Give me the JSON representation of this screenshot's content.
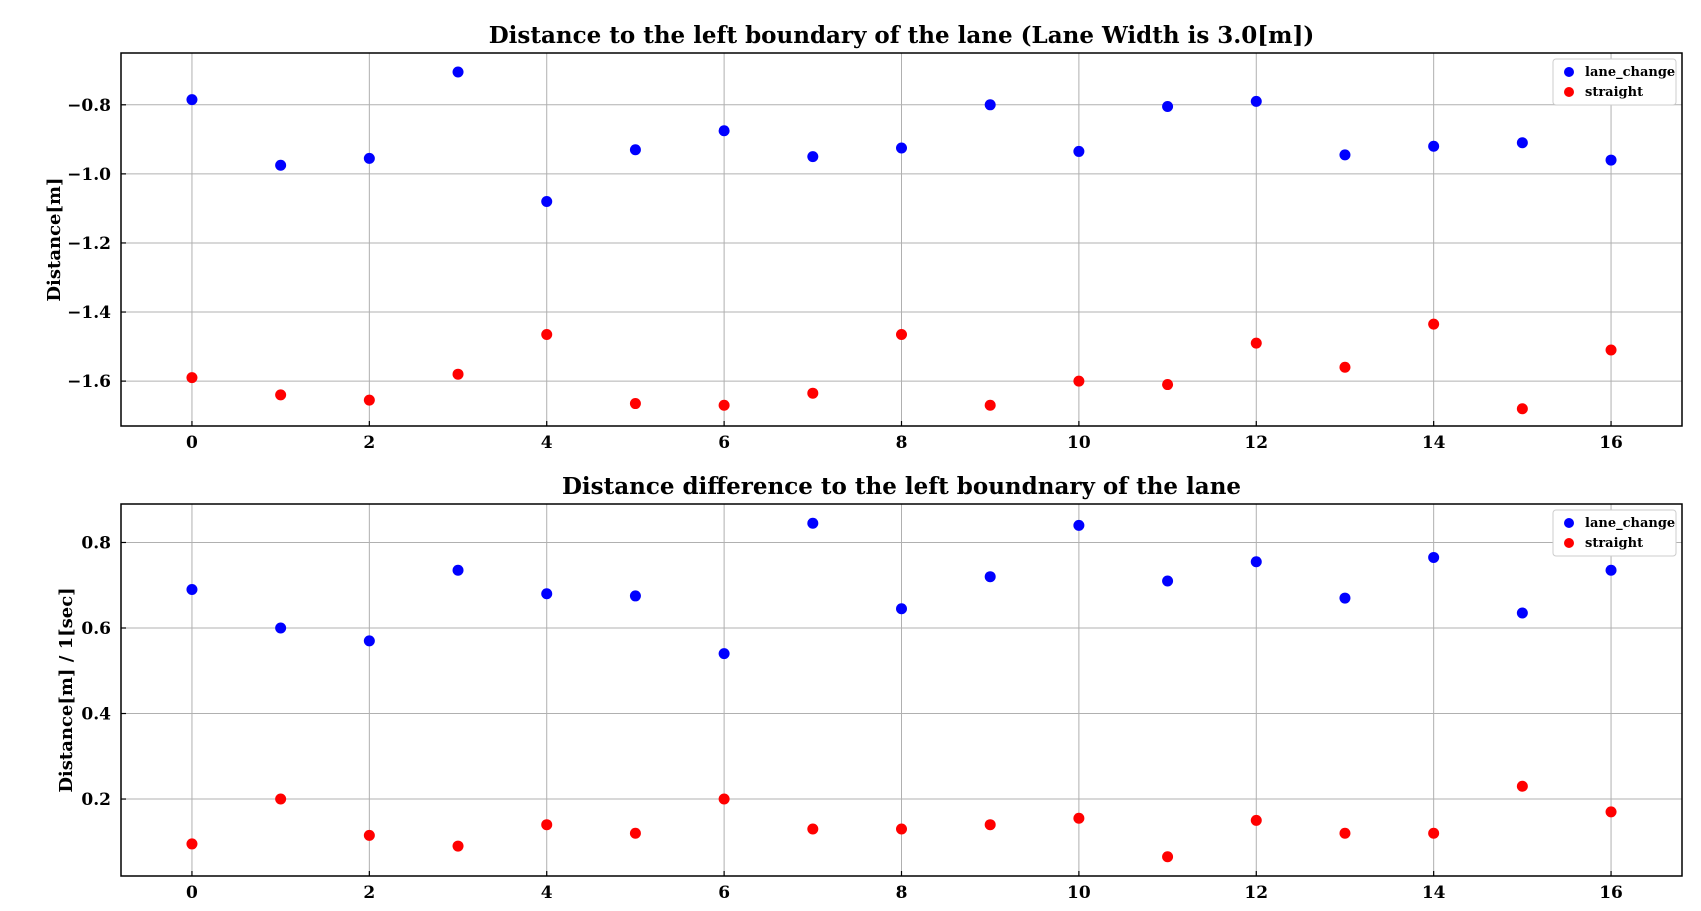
{
  "chart_data": [
    {
      "type": "scatter",
      "title": "Distance to the left boundary of the lane (Lane Width is 3.0[m])",
      "xlabel": "",
      "ylabel": "Distance[m]",
      "xlim": [
        -0.8,
        16.8
      ],
      "ylim": [
        -1.73,
        -0.65
      ],
      "xticks": [
        0,
        2,
        4,
        6,
        8,
        10,
        12,
        14,
        16
      ],
      "yticks": [
        -0.8,
        -1.0,
        -1.2,
        -1.4,
        -1.6
      ],
      "ytick_labels": [
        "−0.8",
        "−1.0",
        "−1.2",
        "−1.4",
        "−1.6"
      ],
      "grid": true,
      "legend_position": "top-right",
      "x": [
        0,
        1,
        2,
        3,
        4,
        5,
        6,
        7,
        8,
        9,
        10,
        11,
        12,
        13,
        14,
        15,
        16
      ],
      "series": [
        {
          "name": "lane_change",
          "color": "#0000ff",
          "values": [
            -0.785,
            -0.975,
            -0.955,
            -0.705,
            -1.08,
            -0.93,
            -0.875,
            -0.95,
            -0.925,
            -0.8,
            -0.935,
            -0.805,
            -0.79,
            -0.945,
            -0.92,
            -0.91,
            -0.96
          ]
        },
        {
          "name": "straight",
          "color": "#ff0000",
          "values": [
            -1.59,
            -1.64,
            -1.655,
            -1.58,
            -1.465,
            -1.665,
            -1.67,
            -1.635,
            -1.465,
            -1.67,
            -1.6,
            -1.61,
            -1.49,
            -1.56,
            -1.435,
            -1.68,
            -1.51
          ]
        }
      ]
    },
    {
      "type": "scatter",
      "title": "Distance difference to the left boundnary of the lane",
      "xlabel": "",
      "ylabel": "Distance[m] / 1[sec]",
      "xlim": [
        -0.8,
        16.8
      ],
      "ylim": [
        0.02,
        0.89
      ],
      "xticks": [
        0,
        2,
        4,
        6,
        8,
        10,
        12,
        14,
        16
      ],
      "yticks": [
        0.2,
        0.4,
        0.6,
        0.8
      ],
      "ytick_labels": [
        "0.2",
        "0.4",
        "0.6",
        "0.8"
      ],
      "grid": true,
      "legend_position": "top-right",
      "x": [
        0,
        1,
        2,
        3,
        4,
        5,
        6,
        7,
        8,
        9,
        10,
        11,
        12,
        13,
        14,
        15,
        16
      ],
      "series": [
        {
          "name": "lane_change",
          "color": "#0000ff",
          "values": [
            0.69,
            0.6,
            0.57,
            0.735,
            0.68,
            0.675,
            0.54,
            0.845,
            0.645,
            0.72,
            0.84,
            0.71,
            0.755,
            0.67,
            0.765,
            0.635,
            0.735
          ]
        },
        {
          "name": "straight",
          "color": "#ff0000",
          "values": [
            0.095,
            0.2,
            0.115,
            0.09,
            0.14,
            0.12,
            0.2,
            0.13,
            0.13,
            0.14,
            0.155,
            0.065,
            0.15,
            0.12,
            0.12,
            0.23,
            0.17
          ]
        }
      ]
    }
  ]
}
